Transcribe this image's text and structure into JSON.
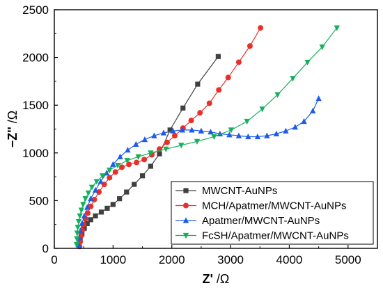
{
  "chart_data": {
    "type": "scatter",
    "title": "",
    "xlabel": {
      "bold": "Z'",
      "unit": " /Ω"
    },
    "ylabel": {
      "bold": "−Z''",
      "unit": " /Ω"
    },
    "xlim": [
      0,
      5500
    ],
    "ylim": [
      0,
      2500
    ],
    "xticks": [
      0,
      1000,
      2000,
      3000,
      4000,
      5000
    ],
    "yticks": [
      0,
      500,
      1000,
      1500,
      2000,
      2500
    ],
    "grid": false,
    "legend_position": "bottom-right",
    "series": [
      {
        "name": "MWCNT-AuNPs",
        "color": "#404040",
        "marker": "square",
        "x": [
          420,
          440,
          470,
          510,
          560,
          620,
          700,
          800,
          900,
          1000,
          1110,
          1230,
          1360,
          1500,
          1640,
          1790,
          1970,
          2190,
          2440,
          2790
        ],
        "y": [
          30,
          90,
          150,
          210,
          260,
          300,
          340,
          380,
          420,
          460,
          520,
          590,
          670,
          760,
          860,
          990,
          1240,
          1470,
          1720,
          2010
        ]
      },
      {
        "name": "MCH/Apatmer/MWCNT-AuNPs",
        "color": "#e8302a",
        "marker": "circle",
        "x": [
          430,
          440,
          455,
          475,
          500,
          530,
          570,
          620,
          680,
          760,
          850,
          940,
          1040,
          1150,
          1270,
          1400,
          1530,
          1660,
          1790,
          1920,
          2050,
          2190,
          2330,
          2480,
          2640,
          2800,
          2960,
          3140,
          3330,
          3510
        ],
        "y": [
          20,
          70,
          130,
          190,
          250,
          310,
          370,
          440,
          510,
          590,
          670,
          740,
          800,
          850,
          880,
          900,
          930,
          980,
          1040,
          1110,
          1180,
          1260,
          1340,
          1420,
          1520,
          1660,
          1790,
          1950,
          2120,
          2310
        ]
      },
      {
        "name": "Apatmer/MWCNT-AuNPs",
        "color": "#1f5be8",
        "marker": "triangle-up",
        "x": [
          410,
          420,
          440,
          470,
          510,
          560,
          620,
          700,
          790,
          890,
          1000,
          1120,
          1250,
          1390,
          1540,
          1700,
          1860,
          2020,
          2180,
          2340,
          2500,
          2660,
          2820,
          2980,
          3140,
          3300,
          3460,
          3620,
          3780,
          3940,
          4100,
          4250,
          4400,
          4500
        ],
        "y": [
          40,
          110,
          180,
          260,
          340,
          430,
          520,
          610,
          700,
          790,
          880,
          960,
          1030,
          1090,
          1140,
          1180,
          1210,
          1230,
          1240,
          1240,
          1230,
          1220,
          1200,
          1190,
          1180,
          1170,
          1170,
          1180,
          1200,
          1230,
          1270,
          1330,
          1440,
          1570
        ]
      },
      {
        "name": "FcSH/Apatmer/MWCNT-AuNPs",
        "color": "#14b05a",
        "marker": "triangle-down",
        "x": [
          380,
          385,
          390,
          400,
          415,
          435,
          460,
          490,
          530,
          580,
          640,
          720,
          820,
          940,
          1080,
          1240,
          1430,
          1640,
          1900,
          2160,
          2430,
          2720,
          3010,
          3280,
          3540,
          3800,
          4060,
          4310,
          4560,
          4810
        ],
        "y": [
          40,
          100,
          160,
          220,
          280,
          340,
          400,
          460,
          520,
          580,
          640,
          700,
          760,
          820,
          870,
          920,
          960,
          1000,
          1040,
          1080,
          1120,
          1170,
          1240,
          1330,
          1460,
          1610,
          1780,
          1950,
          2110,
          2310
        ]
      }
    ]
  }
}
